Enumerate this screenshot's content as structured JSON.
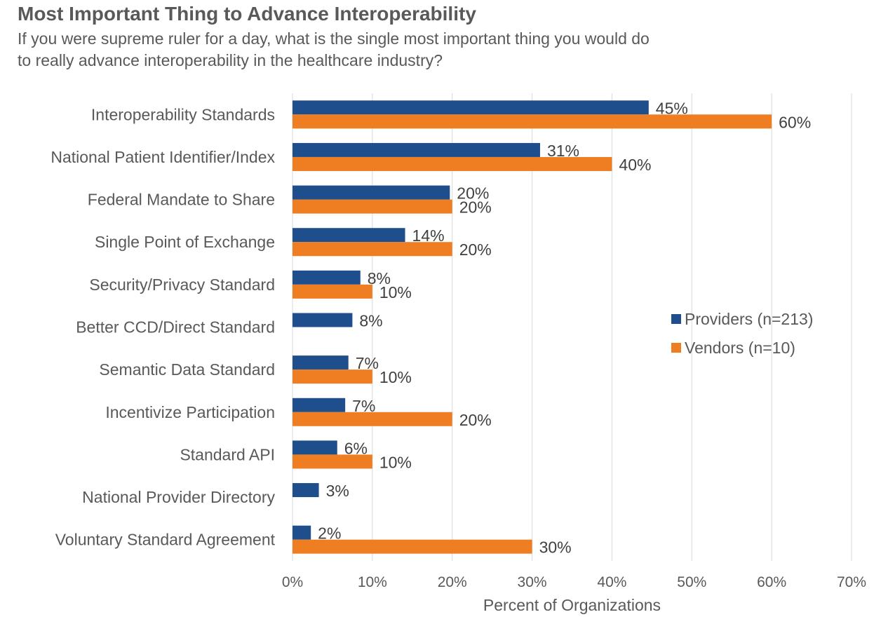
{
  "title": "Most Important Thing to Advance Interoperability",
  "subtitle_lines": [
    "If you were supreme ruler for a day, what is the single most important thing you would do",
    "to really advance interoperability in the healthcare industry?"
  ],
  "colors": {
    "providers": "#1f4e8c",
    "vendors": "#ef7d22",
    "grid": "#d9d9d9"
  },
  "chart_data": {
    "type": "bar",
    "orientation": "horizontal",
    "categories": [
      "Interoperability Standards",
      "National Patient Identifier/Index",
      "Federal Mandate to Share",
      "Single Point of Exchange",
      "Security/Privacy Standard",
      "Better CCD/Direct Standard",
      "Semantic Data Standard",
      "Incentivize Participation",
      "Standard API",
      "National Provider Directory",
      "Voluntary Standard Agreement"
    ],
    "series": [
      {
        "name": "Providers (n=213)",
        "values": [
          44.6,
          31.0,
          19.7,
          14.1,
          8.5,
          7.5,
          7.0,
          6.6,
          5.6,
          3.3,
          2.3
        ],
        "labels": [
          "45%",
          "31%",
          "20%",
          "14%",
          "8%",
          "8%",
          "7%",
          "7%",
          "6%",
          "3%",
          "2%"
        ]
      },
      {
        "name": "Vendors (n=10)",
        "values": [
          60,
          40,
          20,
          20,
          10,
          null,
          10,
          20,
          10,
          null,
          30
        ],
        "labels": [
          "60%",
          "40%",
          "20%",
          "20%",
          "10%",
          null,
          "10%",
          "20%",
          "10%",
          null,
          "30%"
        ]
      }
    ],
    "xlim": [
      0,
      70
    ],
    "x_ticks": [
      "0%",
      "10%",
      "20%",
      "30%",
      "40%",
      "50%",
      "60%",
      "70%"
    ],
    "xlabel": "Percent of Organizations",
    "grid": true,
    "legend_position": "right"
  }
}
